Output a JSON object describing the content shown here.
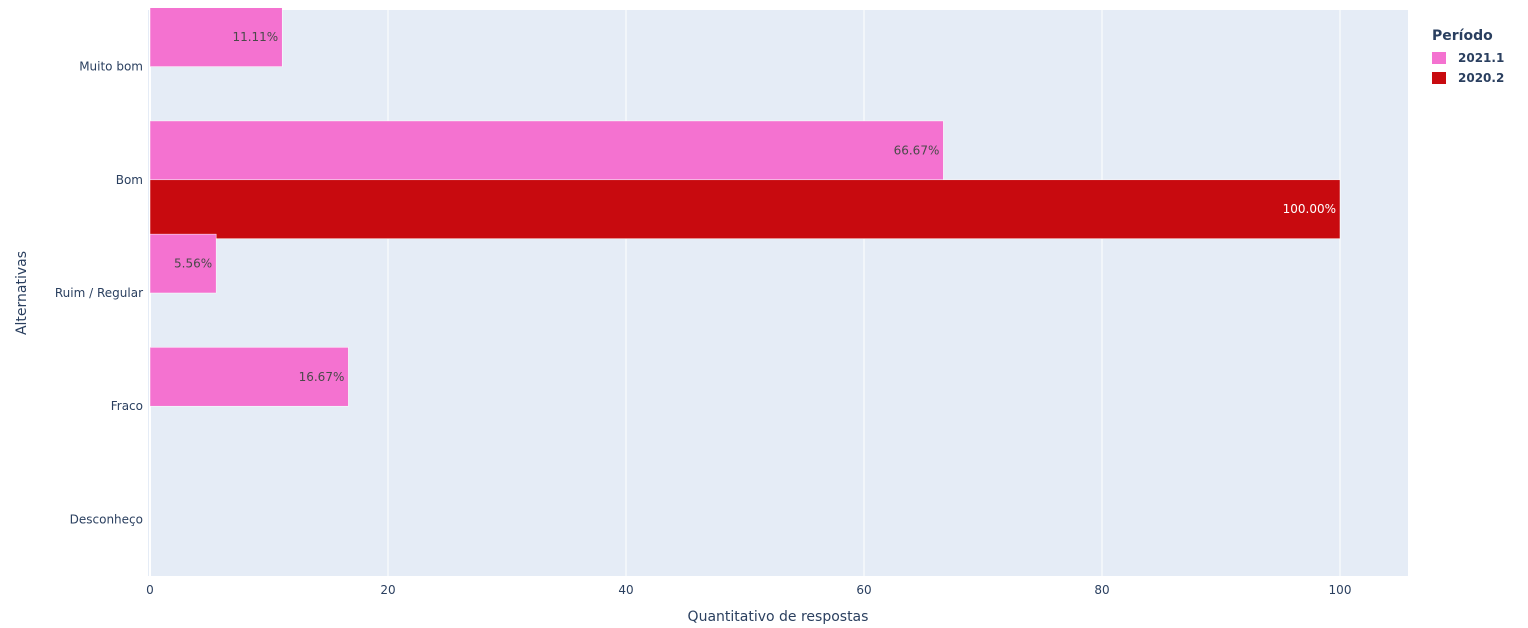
{
  "chart_data": {
    "type": "bar",
    "orientation": "horizontal",
    "categories": [
      "Muito bom",
      "Bom",
      "Ruim / Regular",
      "Fraco",
      "Desconheço"
    ],
    "series": [
      {
        "name": "2021.1",
        "color": "#f472d0",
        "values": [
          11.11,
          66.67,
          5.56,
          16.67,
          0
        ],
        "labels": [
          "11.11%",
          "66.67%",
          "5.56%",
          "16.67%",
          ""
        ]
      },
      {
        "name": "2020.2",
        "color": "#c80a0f",
        "values": [
          0,
          100,
          0,
          0,
          0
        ],
        "labels": [
          "",
          "100.00%",
          "",
          "",
          ""
        ]
      }
    ],
    "xlabel": "Quantitativo de respostas",
    "ylabel": "Alternativas",
    "xlim": [
      0,
      106
    ],
    "xticks": [
      0,
      20,
      40,
      60,
      80,
      100
    ],
    "grid": true,
    "legend": {
      "title": "Período",
      "placement": "top-right"
    },
    "plot_bg": "#e5ecf6"
  }
}
